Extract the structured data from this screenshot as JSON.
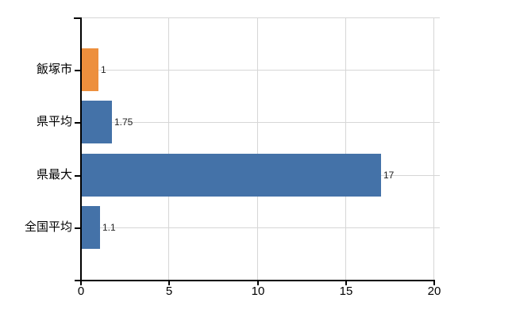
{
  "chart_data": {
    "type": "bar",
    "orientation": "horizontal",
    "title": "",
    "xlabel": "",
    "ylabel": "",
    "categories": [
      "飯塚市",
      "県平均",
      "県最大",
      "全国平均"
    ],
    "values": [
      1,
      1.75,
      17,
      1.1
    ],
    "value_labels": [
      "1",
      "1.75",
      "17",
      "1.1"
    ],
    "bar_colors": [
      "#ed8f3d",
      "#4472a8",
      "#4472a8",
      "#4472a8"
    ],
    "x_ticks": [
      0,
      5,
      10,
      15,
      20
    ],
    "x_tick_labels": [
      "0",
      "5",
      "10",
      "15",
      "20"
    ],
    "xlim": [
      0,
      20
    ],
    "grid": true,
    "legend_position": "none"
  },
  "colors": {
    "highlight_bar": "#ed8f3d",
    "default_bar": "#4472a8",
    "gridline": "#d6d6d6",
    "axis": "#000000",
    "text": "#000000"
  }
}
